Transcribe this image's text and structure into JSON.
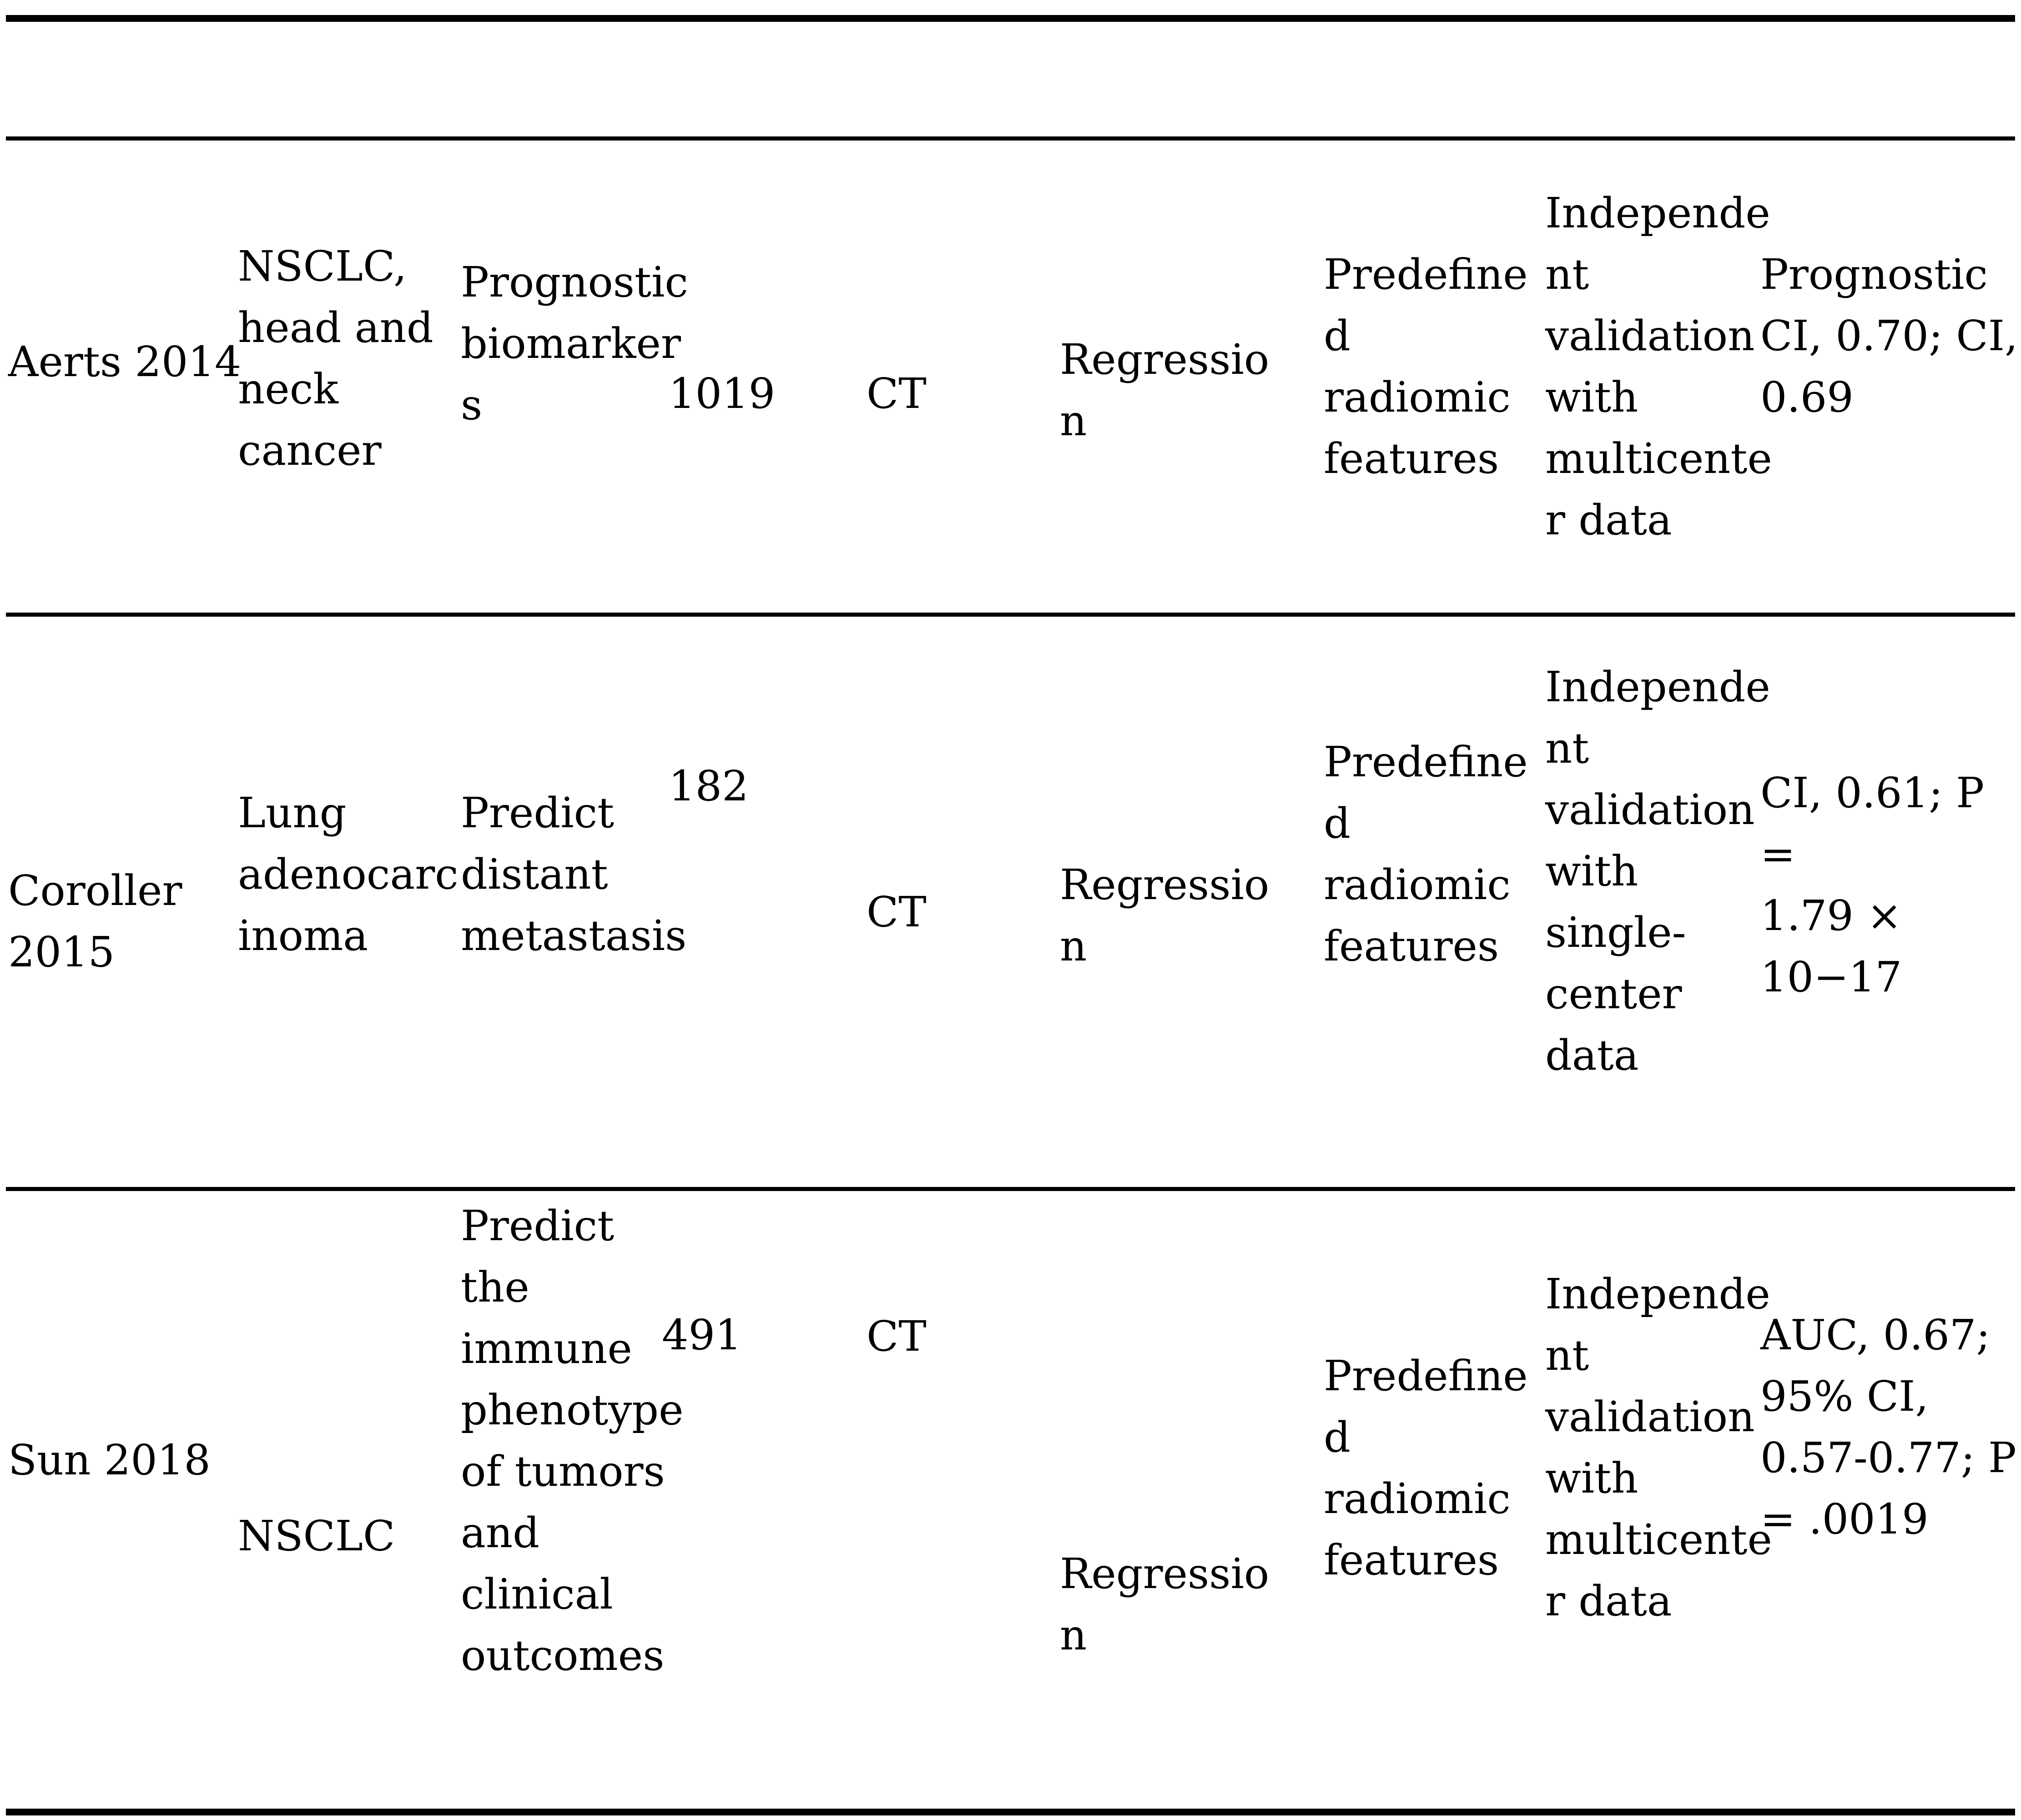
{
  "table": {
    "rows": [
      {
        "study": "Aerts 2014",
        "cancer_type": "NSCLC,\nhead and\nneck\ncancer",
        "goal": "Prognostic\nbiomarker\ns",
        "sample_size": "1019",
        "imaging_modality": "CT",
        "method": "Regressio\nn",
        "features": "Predefine\nd\nradiomic\nfeatures",
        "validation": "Independe\nnt\nvalidation\nwith\nmulticente\nr data",
        "performance": "Prognostic\nCI, 0.70; CI,\n0.69"
      },
      {
        "study": "Coroller\n2015",
        "cancer_type": "Lung\nadenocarc\ninoma",
        "goal": "Predict\ndistant\nmetastasis",
        "sample_size": "182",
        "imaging_modality": "CT",
        "method": "Regressio\nn",
        "features": "Predefine\nd\nradiomic\nfeatures",
        "validation": "Independe\nnt\nvalidation\nwith\nsingle-\ncenter\ndata",
        "performance": "CI, 0.61; P =\n1.79 × 10−17"
      },
      {
        "study": "Sun 2018",
        "cancer_type": "NSCLC",
        "goal": "Predict\nthe\nimmune\nphenotype\nof tumors\nand\nclinical\noutcomes",
        "sample_size": "491",
        "imaging_modality": "CT",
        "method": "Regressio\nn",
        "features": "Predefine\nd\nradiomic\nfeatures",
        "validation": "Independe\nnt\nvalidation\nwith\nmulticente\nr data",
        "performance": "AUC, 0.67;\n95% CI,\n0.57-0.77; P\n= .0019"
      }
    ]
  }
}
